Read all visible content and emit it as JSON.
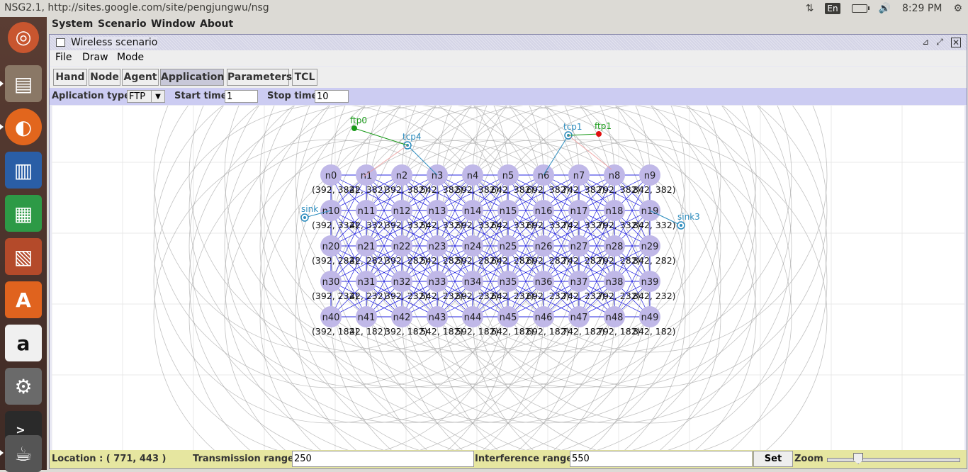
{
  "top_panel": {
    "window_title": "NSG2.1, http://sites.google.com/site/pengjungwu/nsg",
    "keyboard": "En",
    "clock": "8:29 PM"
  },
  "launcher": {
    "icons": [
      "ubuntu-icon",
      "files-icon",
      "firefox-icon",
      "writer-icon",
      "calc-icon",
      "impress-icon",
      "software-center-icon",
      "amazon-icon",
      "settings-icon",
      "terminal-icon",
      "java-icon"
    ]
  },
  "app_menu": [
    "System",
    "Scenario",
    "Window",
    "About"
  ],
  "frame": {
    "title": "Wireless scenario",
    "menu": [
      "File",
      "Draw",
      "Mode"
    ],
    "toolbar": [
      "Hand",
      "Node",
      "Agent",
      "Application",
      "Parameters",
      "TCL"
    ],
    "active_tool": "Application"
  },
  "app_bar": {
    "type_label": "Aplication type",
    "type_value": "FTP",
    "start_label": "Start time",
    "start_value": "1",
    "stop_label": "Stop time",
    "stop_value": "10"
  },
  "scenario": {
    "node_color": "#c0b8e8",
    "link_color": "#2020e0",
    "range_color": "#a0a0a0",
    "agent_color": "#2b8cbe",
    "app_color": "#1a9a1a",
    "sink_agents": [
      {
        "label": "sink",
        "node": "n10"
      },
      {
        "label": "sink3",
        "node": "n19"
      }
    ],
    "tcp_agents": [
      {
        "label": "tcp4",
        "node": "n3"
      },
      {
        "label": "tcp1",
        "node": "n6"
      }
    ],
    "apps": [
      {
        "label": "ftp0",
        "agent": "tcp4",
        "color": "#1a9a1a"
      },
      {
        "label": "ftp1",
        "agent": "tcp1",
        "color": "#e01010"
      }
    ],
    "visible_coords_rows": [
      [
        "(392, 382)",
        "42, 382)",
        "392, 382)",
        "542, 382)",
        "592, 382)",
        "642, 382)",
        "692, 382)",
        "742, 382)",
        "792, 382)",
        "842, 382)"
      ],
      [
        "(392, 332)",
        "42, 332)",
        "392, 332)",
        "542, 332)",
        "592, 332)",
        "642, 332)",
        "692, 332)",
        "742, 332)",
        "792, 332)",
        "842, 332)"
      ],
      [
        "(392, 282)",
        "42, 282)",
        "392, 282)",
        "542, 282)",
        "592, 282)",
        "642, 282)",
        "692, 282)",
        "742, 282)",
        "792, 282)",
        "842, 282)"
      ],
      [
        "(392, 232)",
        "42, 232)",
        "392, 232)",
        "542, 232)",
        "592, 232)",
        "642, 232)",
        "692, 232)",
        "742, 232)",
        "792, 232)",
        "842, 232)"
      ],
      [
        "(392, 182)",
        "42, 182)",
        "392, 182)",
        "542, 182)",
        "592, 182)",
        "642, 182)",
        "692, 182)",
        "742, 182)",
        "792, 182)",
        "842, 182)"
      ]
    ]
  },
  "status": {
    "location": "Location : ( 771, 443 )",
    "tx_label": "Transmission range",
    "tx_value": "250",
    "if_label": "Interference range",
    "if_value": "550",
    "set_label": "Set",
    "zoom_label": "Zoom",
    "zoom_level": 0.2
  }
}
